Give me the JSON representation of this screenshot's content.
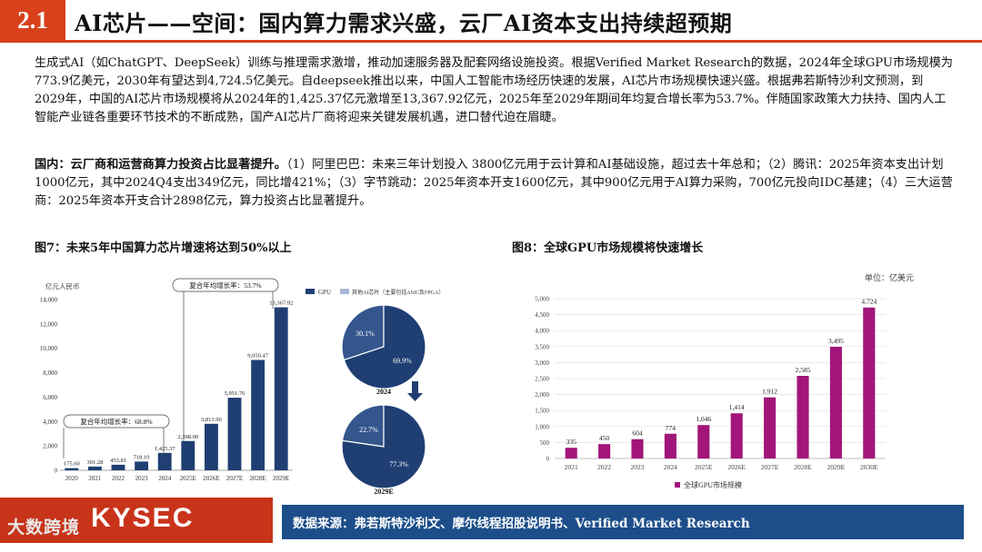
{
  "header": {
    "section_number": "2.1",
    "title": "AI芯片——空间：国内算力需求兴盛，云厂AI资本支出持续超预期"
  },
  "body": {
    "paragraph1": "生成式AI（如ChatGPT、DeepSeek）训练与推理需求激增，推动加速服务器及配套网络设施投资。根据Verified Market Research的数据，2024年全球GPU市场规模为773.9亿美元，2030年有望达到4,724.5亿美元。自deepseek推出以来，中国人工智能市场经历快速的发展，AI芯片市场规模快速兴盛。根据弗若斯特沙利文预测，到2029年，中国的AI芯片市场规模将从2024年的1,425.37亿元激增至13,367.92亿元，2025年至2029年期间年均复合增长率为53.7%。伴随国家政策大力扶持、国内人工智能产业链各重要环节技术的不断成熟，国产AI芯片厂商将迎来关键发展机遇，进口替代迫在眉睫。",
    "paragraph2_lead": "国内：云厂商和运营商算力投资占比显著提升。",
    "paragraph2_rest": "（1）阿里巴巴：未来三年计划投入 3800亿元用于云计算和AI基础设施，超过去十年总和；（2）腾讯：2025年资本支出计划1000亿元，其中2024Q4支出349亿元，同比增421%；（3）字节跳动：2025年资本开支1600亿元，其中900亿元用于AI算力采购，700亿元投向IDC基建；（4）三大运营商：2025年资本开支合计2898亿元，算力投资占比显著提升。"
  },
  "figure7": {
    "caption": "图7：未来5年中国算力芯片增速将达到50%以上",
    "unit": "亿元人民币",
    "cagr1": "复合年均增长率：68.8%",
    "cagr2": "复合年均增长率：53.7%",
    "legend_gpu": "GPU",
    "legend_other": "其他AI芯片（主要包括ASIC及FPGA）",
    "pie1_label": "2024",
    "pie2_label": "2029E",
    "pie1_gpu": "69.9%",
    "pie1_other": "30.1%",
    "pie2_gpu": "77.3%",
    "pie2_other": "22.7%"
  },
  "figure8": {
    "caption": "图8：全球GPU市场规模将快速增长",
    "unit": "单位：亿美元",
    "legend": "全球GPU市场规模"
  },
  "footer": {
    "logo": "KYSEC",
    "source": "数据来源：弗若斯特沙利文、摩尔线程招股说明书、Verified Market Research",
    "watermark": "大数跨境"
  },
  "colors": {
    "accent": "#d8411b",
    "navy": "#1f3f73",
    "purple": "#a2157a",
    "source_bg": "#1d4e8a"
  },
  "chart_data": [
    {
      "type": "bar",
      "title": "图7：未来5年中国算力芯片增速将达到50%以上",
      "ylabel": "亿元人民币",
      "categories": [
        "2020",
        "2021",
        "2022",
        "2023",
        "2024",
        "2025E",
        "2026E",
        "2027E",
        "2028E",
        "2029E"
      ],
      "values": [
        175.6,
        301.28,
        453.81,
        718.1,
        1425.37,
        2398.0,
        3813.9,
        5951.76,
        9050.47,
        13367.92
      ],
      "labels": [
        "175.60",
        "301.28",
        "453.81",
        "718.10",
        "1,425.37",
        "2,398.00",
        "3,813.90",
        "5,951.76",
        "9,050.47",
        "13,367.92"
      ],
      "yticks": [
        "0",
        "2,000",
        "4,000",
        "6,000",
        "8,000",
        "10,000",
        "12,000",
        "14,000"
      ],
      "ylim": [
        0,
        14000
      ]
    },
    {
      "type": "pie",
      "title": "2024",
      "slices": [
        {
          "name": "GPU",
          "value": 69.9
        },
        {
          "name": "其他AI芯片（主要包括ASIC及FPGA）",
          "value": 30.1
        }
      ]
    },
    {
      "type": "pie",
      "title": "2029E",
      "slices": [
        {
          "name": "GPU",
          "value": 77.3
        },
        {
          "name": "其他AI芯片（主要包括ASIC及FPGA）",
          "value": 22.7
        }
      ]
    },
    {
      "type": "bar",
      "title": "图8：全球GPU市场规模将快速增长",
      "ylabel": "单位：亿美元",
      "categories": [
        "2021",
        "2022",
        "2023",
        "2024",
        "2025E",
        "2026E",
        "2027E",
        "2028E",
        "2029E",
        "2030E"
      ],
      "values": [
        335,
        450,
        604,
        774,
        1046,
        1414,
        1912,
        2585,
        3495,
        4724
      ],
      "labels": [
        "335",
        "450",
        "604",
        "774",
        "1,046",
        "1,414",
        "1,912",
        "2,585",
        "3,495",
        "4,724"
      ],
      "yticks": [
        "0",
        "500",
        "1,000",
        "1,500",
        "2,000",
        "2,500",
        "3,000",
        "3,500",
        "4,000",
        "4,500",
        "5,000"
      ],
      "ylim": [
        0,
        5000
      ],
      "series_name": "全球GPU市场规模",
      "grid": true
    }
  ]
}
